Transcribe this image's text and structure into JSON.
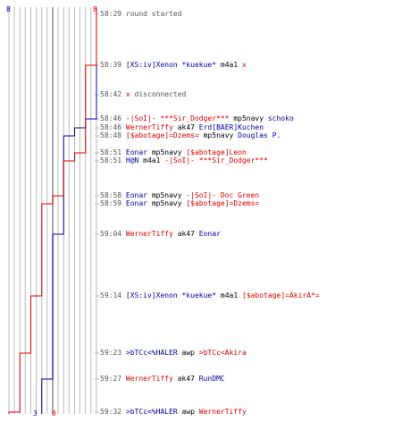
{
  "colors": {
    "blue": "#0000aa",
    "red": "#dd0000",
    "gray_text": "#555555",
    "grid": "#bbbbbb",
    "center": "#888888"
  },
  "score": {
    "blue_start": "8",
    "red_start": "8",
    "blue_end": "3",
    "red_end": "0"
  },
  "events": [
    {
      "time": "58:29",
      "segs": [
        {
          "t": "round started",
          "c": "txt"
        }
      ]
    },
    {
      "time": "58:39",
      "segs": [
        {
          "t": "[XS:iv]Xenon *kuekue*",
          "c": "blue"
        },
        {
          "t": " m4a1 ",
          "c": "p"
        },
        {
          "t": "x",
          "c": "red"
        }
      ]
    },
    {
      "time": "58:42",
      "segs": [
        {
          "t": "x",
          "c": "red"
        },
        {
          "t": " disconnected",
          "c": "txt"
        }
      ]
    },
    {
      "time": "58:46",
      "segs": [
        {
          "t": "-|SoI|- ***Sir_Dodger***",
          "c": "red"
        },
        {
          "t": " mp5navy ",
          "c": "p"
        },
        {
          "t": "schoko",
          "c": "blue"
        }
      ]
    },
    {
      "time": "58:46",
      "segs": [
        {
          "t": "WernerTiffy",
          "c": "red"
        },
        {
          "t": " ak47 ",
          "c": "p"
        },
        {
          "t": "Erd[BAER]Kuchen",
          "c": "blue"
        }
      ]
    },
    {
      "time": "58:48",
      "segs": [
        {
          "t": "[$abotage]=Dzems=",
          "c": "red"
        },
        {
          "t": " mp5navy ",
          "c": "p"
        },
        {
          "t": "Douglas P.",
          "c": "blue"
        }
      ]
    },
    {
      "time": "58:51",
      "segs": [
        {
          "t": "Eonar",
          "c": "blue"
        },
        {
          "t": " mp5navy ",
          "c": "p"
        },
        {
          "t": "[$abotage]Leon",
          "c": "red"
        }
      ]
    },
    {
      "time": "58:51",
      "segs": [
        {
          "t": "H@N",
          "c": "blue"
        },
        {
          "t": " m4a1 ",
          "c": "p"
        },
        {
          "t": "-|SoI|- ***Sir_Dodger***",
          "c": "red"
        }
      ]
    },
    {
      "time": "58:58",
      "segs": [
        {
          "t": "Eonar",
          "c": "blue"
        },
        {
          "t": " mp5navy ",
          "c": "p"
        },
        {
          "t": "-|SoI|- Doc Green",
          "c": "red"
        }
      ]
    },
    {
      "time": "58:59",
      "segs": [
        {
          "t": "Eonar",
          "c": "blue"
        },
        {
          "t": " mp5navy ",
          "c": "p"
        },
        {
          "t": "[$abotage]=Dzems=",
          "c": "red"
        }
      ]
    },
    {
      "time": "59:04",
      "segs": [
        {
          "t": "WernerTiffy",
          "c": "red"
        },
        {
          "t": " ak47 ",
          "c": "p"
        },
        {
          "t": "Eonar",
          "c": "blue"
        }
      ]
    },
    {
      "time": "59:14",
      "segs": [
        {
          "t": "[XS:iv]Xenon *kuekue*",
          "c": "blue"
        },
        {
          "t": " m4a1 ",
          "c": "p"
        },
        {
          "t": "[$abotage]=AkirA*=",
          "c": "red"
        }
      ]
    },
    {
      "time": "59:23",
      "segs": [
        {
          "t": ">bTCc<%HALER",
          "c": "blue"
        },
        {
          "t": " awp ",
          "c": "p"
        },
        {
          "t": ">bTCc<Akira",
          "c": "red"
        }
      ]
    },
    {
      "time": "59:27",
      "segs": [
        {
          "t": "WernerTiffy",
          "c": "red"
        },
        {
          "t": " ak47 ",
          "c": "p"
        },
        {
          "t": "RunDMC",
          "c": "blue"
        }
      ]
    },
    {
      "time": "59:32",
      "segs": [
        {
          "t": ">bTCc<%HALER",
          "c": "blue"
        },
        {
          "t": " awp ",
          "c": "p"
        },
        {
          "t": "WernerTiffy",
          "c": "red"
        }
      ]
    }
  ],
  "lines": {
    "blue": [
      [
        0,
        8
      ],
      [
        3,
        7
      ],
      [
        4,
        6
      ],
      [
        5,
        5
      ],
      [
        10,
        4
      ],
      [
        13,
        3
      ]
    ],
    "red": [
      [
        0,
        8
      ],
      [
        1,
        7
      ],
      [
        6,
        6
      ],
      [
        7,
        5
      ],
      [
        8,
        4
      ],
      [
        9,
        3
      ],
      [
        11,
        2
      ],
      [
        12,
        1
      ],
      [
        14,
        0
      ]
    ]
  }
}
